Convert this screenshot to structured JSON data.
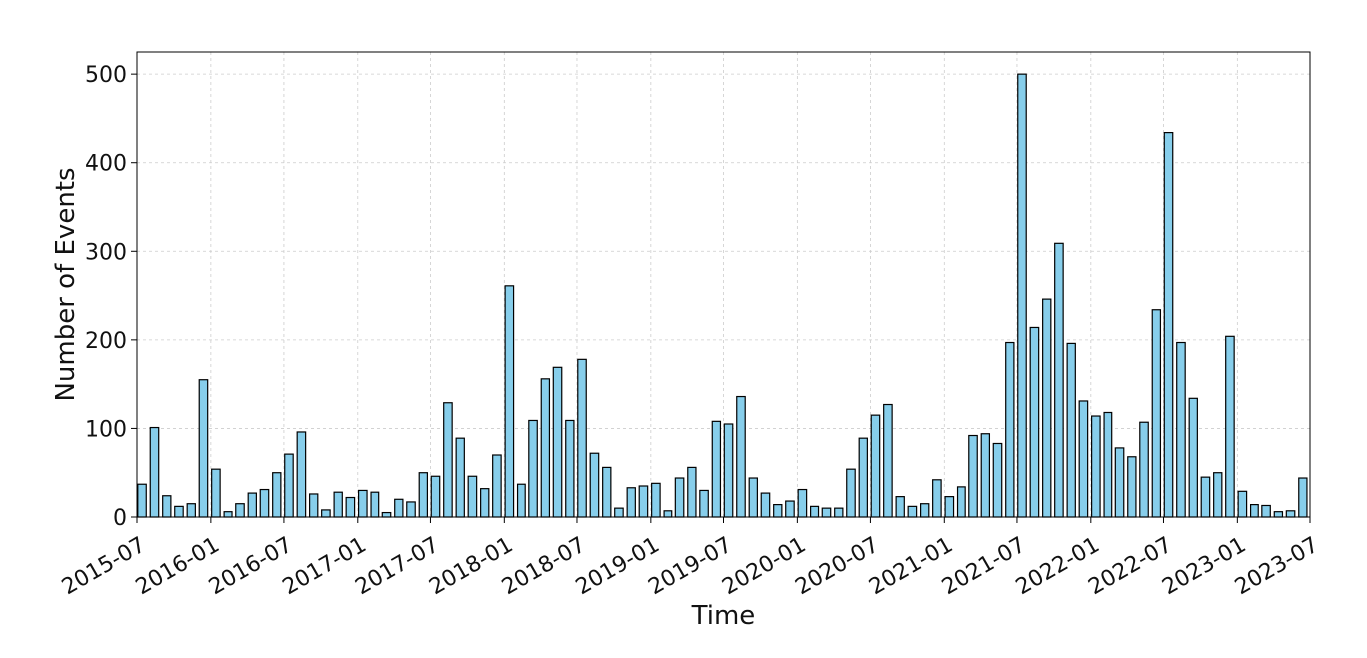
{
  "chart_data": {
    "type": "bar",
    "title": "",
    "xlabel": "Time",
    "ylabel": "Number of Events",
    "ylim": [
      0,
      525
    ],
    "xlim": [
      "2015-07-01",
      "2023-07-01"
    ],
    "grid": true,
    "bar_color": "#87ceeb",
    "edge_color": "#000000",
    "x_tick_labels": [
      "2015-07",
      "2016-01",
      "2016-07",
      "2017-01",
      "2017-07",
      "2018-01",
      "2018-07",
      "2019-01",
      "2019-07",
      "2020-01",
      "2020-07",
      "2021-01",
      "2021-07",
      "2022-01",
      "2022-07",
      "2023-01",
      "2023-07"
    ],
    "y_tick_labels": [
      "0",
      "100",
      "200",
      "300",
      "400",
      "500"
    ],
    "x": [
      "2015-07",
      "2015-08",
      "2015-09",
      "2015-10",
      "2015-11",
      "2015-12",
      "2016-01",
      "2016-02",
      "2016-03",
      "2016-04",
      "2016-05",
      "2016-06",
      "2016-07",
      "2016-08",
      "2016-09",
      "2016-10",
      "2016-11",
      "2016-12",
      "2017-01",
      "2017-02",
      "2017-03",
      "2017-04",
      "2017-05",
      "2017-06",
      "2017-07",
      "2017-08",
      "2017-09",
      "2017-10",
      "2017-11",
      "2017-12",
      "2018-01",
      "2018-02",
      "2018-03",
      "2018-04",
      "2018-05",
      "2018-06",
      "2018-07",
      "2018-08",
      "2018-09",
      "2018-10",
      "2018-11",
      "2018-12",
      "2019-01",
      "2019-02",
      "2019-03",
      "2019-04",
      "2019-05",
      "2019-06",
      "2019-07",
      "2019-08",
      "2019-09",
      "2019-10",
      "2019-11",
      "2019-12",
      "2020-01",
      "2020-02",
      "2020-03",
      "2020-04",
      "2020-05",
      "2020-06",
      "2020-07",
      "2020-08",
      "2020-09",
      "2020-10",
      "2020-11",
      "2020-12",
      "2021-01",
      "2021-02",
      "2021-03",
      "2021-04",
      "2021-05",
      "2021-06",
      "2021-07",
      "2021-08",
      "2021-09",
      "2021-10",
      "2021-11",
      "2021-12",
      "2022-01",
      "2022-02",
      "2022-03",
      "2022-04",
      "2022-05",
      "2022-06",
      "2022-07",
      "2022-08",
      "2022-09",
      "2022-10",
      "2022-11",
      "2022-12",
      "2023-01",
      "2023-02",
      "2023-03",
      "2023-04",
      "2023-05",
      "2023-06"
    ],
    "values": [
      37,
      101,
      24,
      12,
      15,
      155,
      54,
      6,
      15,
      27,
      31,
      50,
      71,
      96,
      26,
      8,
      28,
      22,
      30,
      28,
      5,
      20,
      17,
      50,
      46,
      129,
      89,
      46,
      32,
      70,
      261,
      37,
      109,
      156,
      169,
      109,
      178,
      72,
      56,
      10,
      33,
      35,
      38,
      7,
      44,
      56,
      30,
      108,
      105,
      136,
      44,
      27,
      14,
      18,
      31,
      12,
      10,
      10,
      54,
      89,
      115,
      127,
      23,
      12,
      15,
      42,
      23,
      34,
      92,
      94,
      83,
      197,
      500,
      214,
      246,
      309,
      196,
      131,
      114,
      118,
      78,
      68,
      107,
      234,
      434,
      197,
      134,
      45,
      50,
      204,
      29,
      14,
      13,
      6,
      7,
      44
    ]
  }
}
